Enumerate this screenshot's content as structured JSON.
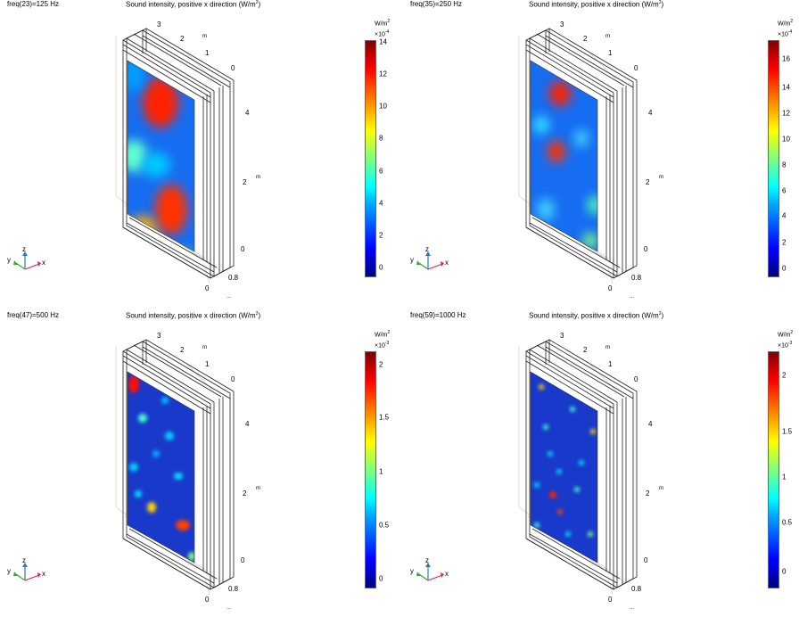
{
  "panels": [
    {
      "freq": "freq(23)=125 Hz",
      "title_main": "Sound intensity, positive x direction (W/m",
      "title_sup": "2",
      "title_end": ")",
      "cb_unit": "W/m",
      "cb_unit_sup": "2",
      "cb_scale": "×10",
      "cb_scale_sup": "-4",
      "cb_ticks": [
        "14",
        "12",
        "10",
        "8",
        "6",
        "4",
        "2",
        "0"
      ],
      "axis_labels": {
        "y3": "3",
        "y2": "2",
        "m_top": "m",
        "y1": "1",
        "y0": "0",
        "z4": "4",
        "z2": "2",
        "m_right": "m",
        "z0": "0",
        "x08": "0.8",
        "x0": "0",
        "ell": "..."
      }
    },
    {
      "freq": "freq(35)=250 Hz",
      "title_main": "Sound intensity, positive x direction (W/m",
      "title_sup": "2",
      "title_end": ")",
      "cb_unit": "W/m",
      "cb_unit_sup": "2",
      "cb_scale": "×10",
      "cb_scale_sup": "-4",
      "cb_ticks": [
        "16",
        "14",
        "12",
        "10",
        "8",
        "6",
        "4",
        "2",
        "0"
      ],
      "axis_labels": {
        "y3": "3",
        "y2": "2",
        "m_top": "m",
        "y1": "1",
        "y0": "0",
        "z4": "4",
        "z2": "2",
        "m_right": "m",
        "z0": "0",
        "x08": "0.8",
        "x0": "0",
        "ell": "..."
      }
    },
    {
      "freq": "freq(47)=500 Hz",
      "title_main": "Sound intensity, positive x direction (W/m",
      "title_sup": "2",
      "title_end": ")",
      "cb_unit": "W/m",
      "cb_unit_sup": "2",
      "cb_scale": "×10",
      "cb_scale_sup": "-3",
      "cb_ticks": [
        "2",
        "1.5",
        "1",
        "0.5",
        "0"
      ],
      "axis_labels": {
        "y3": "3",
        "y2": "2",
        "m_top": "m",
        "y1": "1",
        "y0": "0",
        "z4": "4",
        "z2": "2",
        "m_right": "m",
        "z0": "0",
        "x08": "0.8",
        "x0": "0",
        "ell": "..."
      }
    },
    {
      "freq": "freq(59)=1000 Hz",
      "title_main": "Sound intensity, positive x direction (W/m",
      "title_sup": "2",
      "title_end": ")",
      "cb_unit": "W/m",
      "cb_unit_sup": "2",
      "cb_scale": "×10",
      "cb_scale_sup": "-3",
      "cb_ticks": [
        "2",
        "1.5",
        "1",
        "0.5",
        "0"
      ],
      "axis_labels": {
        "y3": "3",
        "y2": "2",
        "m_top": "m",
        "y1": "1",
        "y0": "0",
        "z4": "4",
        "z2": "2",
        "m_right": "m",
        "z0": "0",
        "x08": "0.8",
        "x0": "0",
        "ell": "..."
      }
    }
  ],
  "triad": {
    "z": "z",
    "y": "y",
    "x": "x"
  },
  "colors": {
    "z_axis": "#2a7ab8",
    "y_axis": "#3aa63a",
    "x_axis": "#d6246b"
  }
}
